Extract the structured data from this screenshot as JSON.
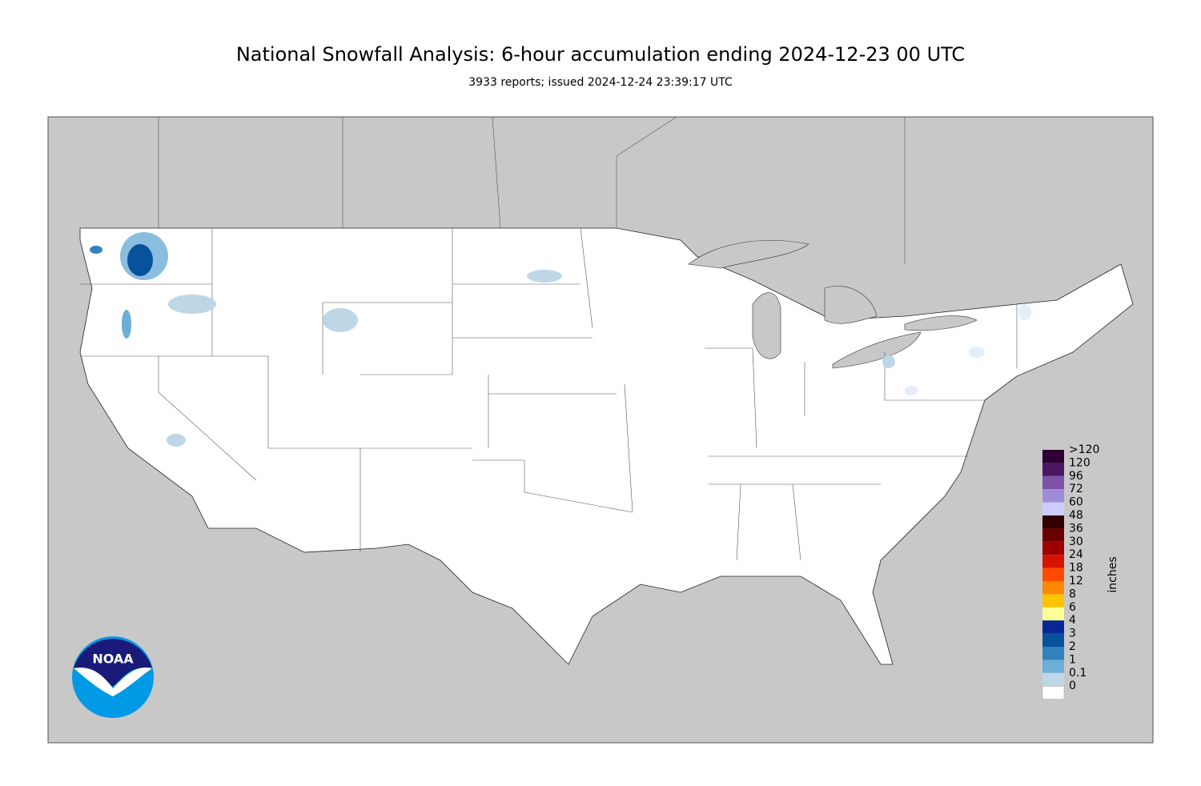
{
  "header": {
    "title": "National Snowfall Analysis: 6-hour accumulation ending 2024-12-23 00 UTC",
    "subtitle": "3933 reports; issued 2024-12-24 23:39:17 UTC"
  },
  "legend": {
    "title": "inches",
    "items": [
      {
        "label": ">120",
        "color": "#2e0033"
      },
      {
        "label": "120",
        "color": "#4c1663"
      },
      {
        "label": "96",
        "color": "#7b52a5"
      },
      {
        "label": "72",
        "color": "#9f8cd8"
      },
      {
        "label": "60",
        "color": "#ccccff"
      },
      {
        "label": "48",
        "color": "#330000"
      },
      {
        "label": "36",
        "color": "#690000"
      },
      {
        "label": "30",
        "color": "#9e0000"
      },
      {
        "label": "24",
        "color": "#d41400"
      },
      {
        "label": "18",
        "color": "#ff4a00"
      },
      {
        "label": "12",
        "color": "#ff8700"
      },
      {
        "label": "8",
        "color": "#ffc400"
      },
      {
        "label": "6",
        "color": "#ffff96"
      },
      {
        "label": "4",
        "color": "#082694"
      },
      {
        "label": "3",
        "color": "#08519c"
      },
      {
        "label": "2",
        "color": "#3182bd"
      },
      {
        "label": "1",
        "color": "#6baed6"
      },
      {
        "label": "0.1",
        "color": "#bdd7e7"
      },
      {
        "label": "0",
        "color": "#ffffff"
      }
    ]
  },
  "logo": {
    "text": "NOAA"
  }
}
